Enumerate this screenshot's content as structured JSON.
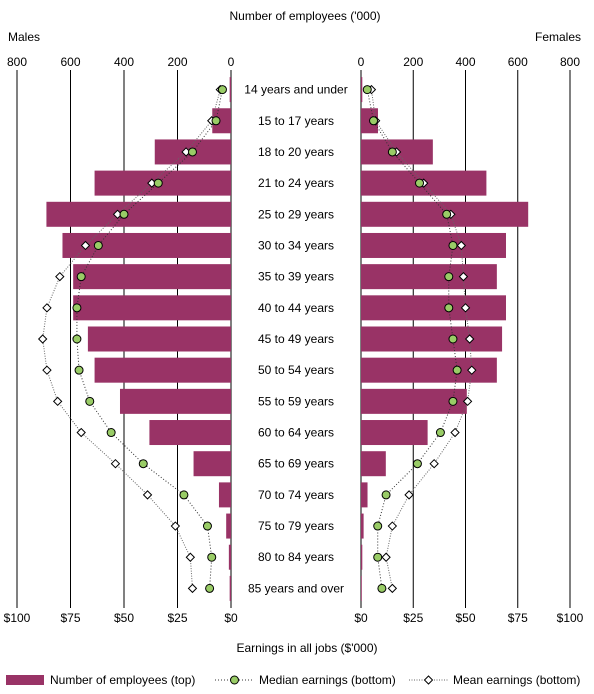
{
  "chart_data": {
    "type": "bar",
    "title": "Number of employees ('000)",
    "xlabel_bottom": "Earnings in all jobs ($'000)",
    "left_panel_label": "Males",
    "right_panel_label": "Females",
    "top_axis": {
      "range": [
        0,
        800
      ],
      "ticks": [
        "800",
        "600",
        "400",
        "200",
        "0"
      ],
      "ticks_right": [
        "0",
        "200",
        "400",
        "600",
        "800"
      ]
    },
    "bottom_axis": {
      "range": [
        0,
        100
      ],
      "ticks": [
        "$100",
        "$75",
        "$50",
        "$25",
        "$0"
      ],
      "ticks_right": [
        "$0",
        "$25",
        "$50",
        "$75",
        "$100"
      ]
    },
    "categories": [
      "14 years and under",
      "15 to 17 years",
      "18 to 20 years",
      "21 to 24 years",
      "25 to 29 years",
      "30 to 34 years",
      "35 to 39 years",
      "40 to 44 years",
      "45 to 49 years",
      "50 to 54 years",
      "55 to 59 years",
      "60 to 64 years",
      "65 to 69 years",
      "70 to 74 years",
      "75 to 79 years",
      "80 to 84 years",
      "85 years and over"
    ],
    "series": [
      {
        "name": "Number of employees (top)",
        "axis": "top",
        "color": "#993366",
        "males": [
          5,
          70,
          285,
          510,
          690,
          630,
          590,
          590,
          535,
          510,
          415,
          305,
          140,
          45,
          18,
          8,
          5
        ],
        "females": [
          5,
          65,
          275,
          480,
          640,
          555,
          520,
          555,
          540,
          520,
          405,
          255,
          95,
          25,
          10,
          5,
          3
        ]
      },
      {
        "name": "Median earnings (bottom)",
        "axis": "bottom",
        "color": "#99cc66",
        "males": [
          4,
          7,
          18,
          34,
          50,
          62,
          70,
          72,
          72,
          71,
          66,
          56,
          41,
          22,
          11,
          9,
          10
        ],
        "females": [
          3,
          6,
          15,
          28,
          41,
          44,
          42,
          42,
          44,
          46,
          44,
          38,
          27,
          12,
          8,
          8,
          10
        ]
      },
      {
        "name": "Mean earnings (bottom)",
        "axis": "bottom",
        "color": "#ffffff",
        "males": [
          5,
          9,
          21,
          37,
          53,
          68,
          80,
          86,
          88,
          86,
          81,
          70,
          54,
          39,
          26,
          19,
          18
        ],
        "females": [
          5,
          7,
          17,
          30,
          43,
          48,
          49,
          50,
          52,
          53,
          51,
          45,
          35,
          23,
          15,
          12,
          15
        ]
      }
    ],
    "legend_position": "bottom",
    "grid": "vertical"
  }
}
